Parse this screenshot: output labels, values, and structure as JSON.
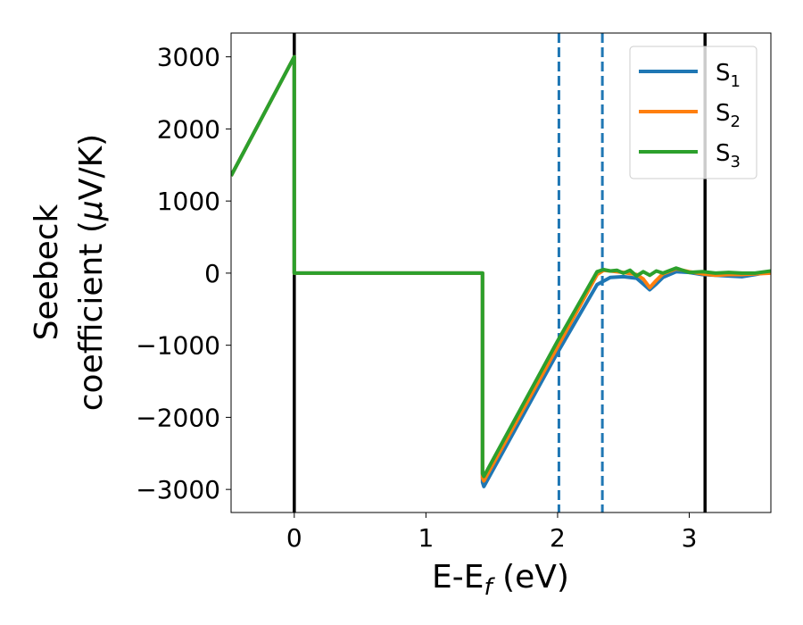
{
  "chart_data": {
    "type": "line",
    "xlabel": "E-E",
    "xlabel_sub": "f",
    "xlabel_unit": " (eV)",
    "ylabel_line1": "Seebeck",
    "ylabel_line2_a": "coefficient  (",
    "ylabel_line2_mu": "μ",
    "ylabel_line2_b": "V/K)",
    "xlim": [
      -0.48,
      3.62
    ],
    "ylim": [
      -3320,
      3330
    ],
    "x_ticks": [
      0,
      1,
      2,
      3
    ],
    "x_tick_labels": [
      "0",
      "1",
      "2",
      "3"
    ],
    "y_ticks": [
      3000,
      2000,
      1000,
      0,
      -1000,
      -2000,
      -3000
    ],
    "y_tick_labels": [
      "3000",
      "2000",
      "1000",
      "0",
      "−1000",
      "−2000",
      "−3000"
    ],
    "vlines": [
      {
        "x": 0.0,
        "style": "solid",
        "color": "#000000"
      },
      {
        "x": 3.12,
        "style": "solid",
        "color": "#000000"
      },
      {
        "x": 2.01,
        "style": "dashed",
        "color": "#1f77b4"
      },
      {
        "x": 2.34,
        "style": "dashed",
        "color": "#1f77b4"
      }
    ],
    "legend_position": "top-right",
    "series": [
      {
        "name": "S",
        "sub": "1",
        "color": "#1f77b4",
        "x": [
          -0.48,
          0.0,
          0.0,
          1.43,
          1.43,
          1.44,
          2.0,
          2.3,
          2.4,
          2.5,
          2.6,
          2.65,
          2.7,
          2.75,
          2.8,
          2.9,
          3.0,
          3.1,
          3.2,
          3.3,
          3.4,
          3.5,
          3.62
        ],
        "y": [
          1350,
          3000,
          0,
          0,
          -2900,
          -2960,
          -1100,
          -160,
          -60,
          -50,
          -70,
          -150,
          -230,
          -150,
          -60,
          20,
          10,
          -20,
          -30,
          -40,
          -50,
          -20,
          20
        ]
      },
      {
        "name": "S",
        "sub": "2",
        "color": "#ff7f0e",
        "x": [
          -0.48,
          0.0,
          0.0,
          1.43,
          1.43,
          1.44,
          2.0,
          2.3,
          2.35,
          2.4,
          2.5,
          2.6,
          2.65,
          2.7,
          2.75,
          2.8,
          2.9,
          3.0,
          3.1,
          3.2,
          3.3,
          3.4,
          3.5,
          3.62
        ],
        "y": [
          1350,
          3000,
          0,
          0,
          -2840,
          -2880,
          -1020,
          -20,
          40,
          30,
          10,
          -20,
          -80,
          -200,
          -100,
          -10,
          60,
          20,
          -10,
          -30,
          -20,
          -20,
          -10,
          0
        ]
      },
      {
        "name": "S",
        "sub": "3",
        "color": "#2ca02c",
        "x": [
          -0.48,
          0.0,
          0.0,
          1.43,
          1.43,
          1.44,
          2.0,
          2.3,
          2.35,
          2.4,
          2.45,
          2.5,
          2.55,
          2.6,
          2.65,
          2.7,
          2.75,
          2.8,
          2.9,
          3.0,
          3.1,
          3.2,
          3.3,
          3.4,
          3.5,
          3.62
        ],
        "y": [
          1350,
          3000,
          0,
          0,
          -2780,
          -2820,
          -940,
          20,
          50,
          30,
          40,
          0,
          40,
          -40,
          20,
          -30,
          30,
          0,
          70,
          10,
          20,
          0,
          10,
          0,
          0,
          30
        ]
      }
    ]
  }
}
